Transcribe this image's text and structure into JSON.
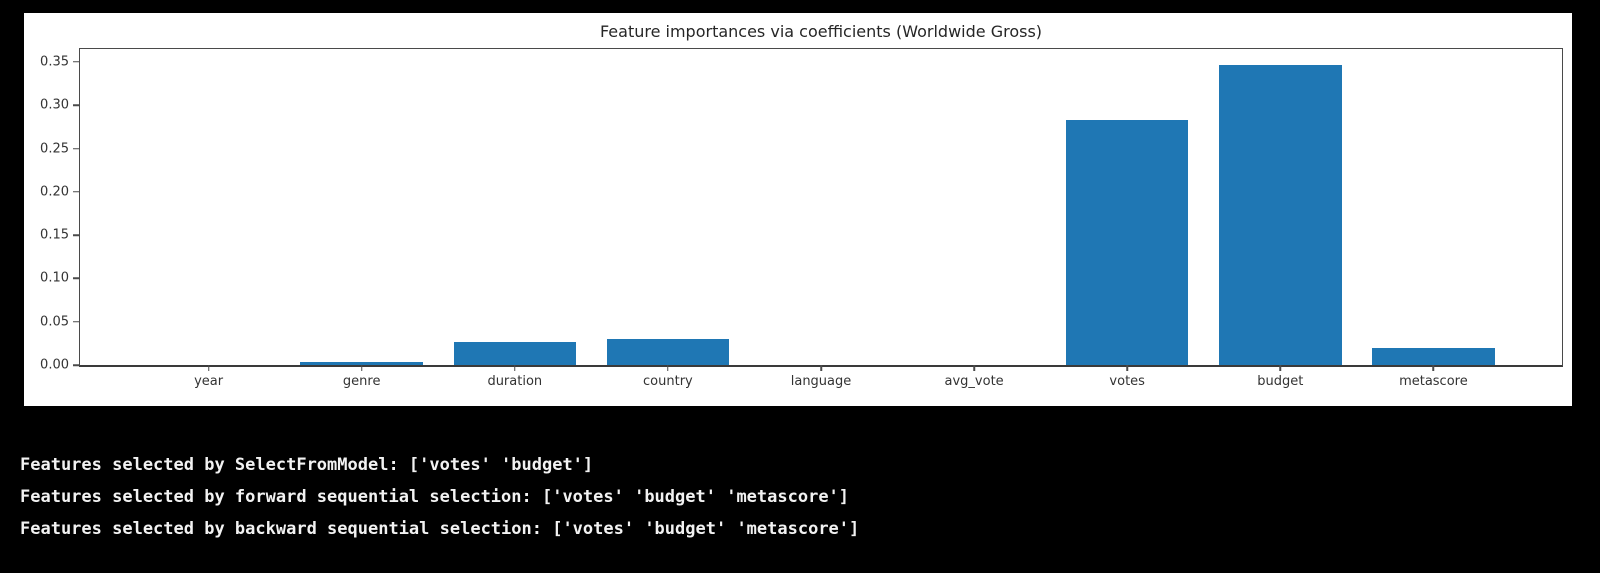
{
  "chart_data": {
    "type": "bar",
    "title": "Feature importances via coefficients (Worldwide Gross)",
    "categories": [
      "year",
      "genre",
      "duration",
      "country",
      "language",
      "avg_vote",
      "votes",
      "budget",
      "metascore"
    ],
    "values": [
      0.0,
      0.004,
      0.027,
      0.03,
      0.0,
      0.0,
      0.283,
      0.347,
      0.02
    ],
    "xlabel": "",
    "ylabel": "",
    "ylim": [
      0,
      0.365
    ],
    "yticks": [
      "0.00",
      "0.05",
      "0.10",
      "0.15",
      "0.20",
      "0.25",
      "0.30",
      "0.35"
    ],
    "grid": false,
    "legend": false,
    "bar_color": "#1f77b4"
  },
  "console": {
    "lines": [
      "Features selected by SelectFromModel: ['votes' 'budget']",
      "Features selected by forward sequential selection: ['votes' 'budget' 'metascore']",
      "Features selected by backward sequential selection: ['votes' 'budget' 'metascore']"
    ]
  },
  "colors": {
    "background": "#000000",
    "panel": "#ffffff",
    "bar": "#1f77b4",
    "console_text": "#f2f2f2"
  }
}
